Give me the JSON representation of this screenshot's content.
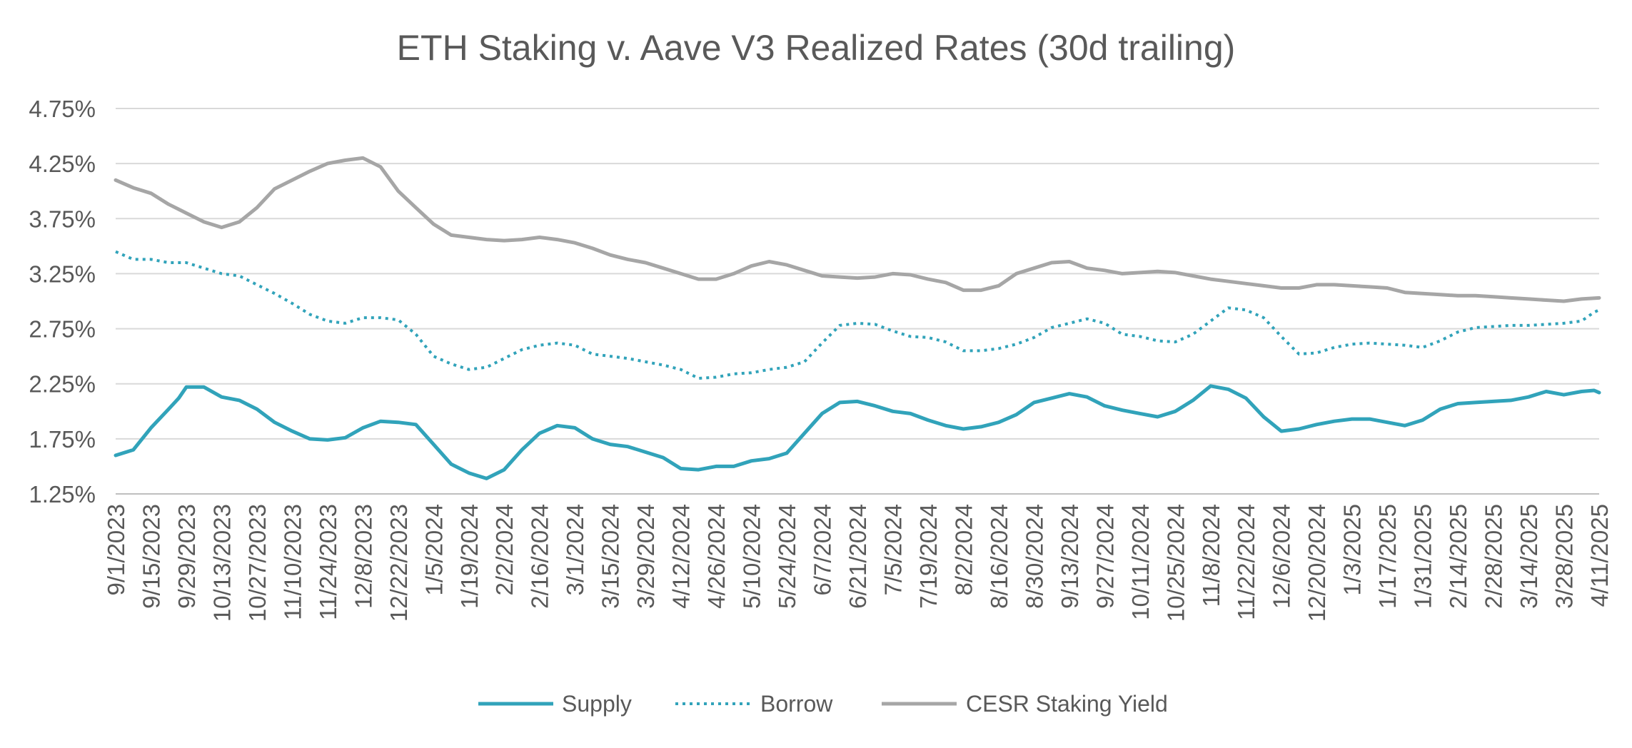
{
  "chart_data": {
    "type": "line",
    "title": "ETH Staking v. Aave V3 Realized Rates (30d trailing)",
    "xlabel": "",
    "ylabel": "",
    "ylim": [
      1.25,
      4.75
    ],
    "y_ticks": [
      "4.75%",
      "4.25%",
      "3.75%",
      "3.25%",
      "2.75%",
      "2.25%",
      "1.75%",
      "1.25%"
    ],
    "y_tick_values": [
      4.75,
      4.25,
      3.75,
      3.25,
      2.75,
      2.25,
      1.75,
      1.25
    ],
    "x_ticks": [
      "9/1/2023",
      "9/15/2023",
      "9/29/2023",
      "10/13/2023",
      "10/27/2023",
      "11/10/2023",
      "11/24/2023",
      "12/8/2023",
      "12/22/2023",
      "1/5/2024",
      "1/19/2024",
      "2/2/2024",
      "2/16/2024",
      "3/1/2024",
      "3/15/2024",
      "3/29/2024",
      "4/12/2024",
      "4/26/2024",
      "5/10/2024",
      "5/24/2024",
      "6/7/2024",
      "6/21/2024",
      "7/5/2024",
      "7/19/2024",
      "8/2/2024",
      "8/16/2024",
      "8/30/2024",
      "9/13/2024",
      "9/27/2024",
      "10/11/2024",
      "10/25/2024",
      "11/8/2024",
      "11/22/2024",
      "12/6/2024",
      "12/20/2024",
      "1/3/2025",
      "1/17/2025",
      "1/31/2025",
      "2/14/2025",
      "2/28/2025",
      "3/14/2025",
      "3/28/2025",
      "4/11/2025"
    ],
    "x_day_span": 588,
    "legend_position": "bottom",
    "grid": true,
    "series": [
      {
        "name": "Supply",
        "color": "#31a3ba",
        "style": "solid",
        "days": [
          0,
          7,
          14,
          21,
          25,
          28,
          35,
          42,
          49,
          56,
          63,
          70,
          77,
          84,
          91,
          98,
          105,
          112,
          119,
          126,
          133,
          140,
          147,
          154,
          161,
          168,
          175,
          182,
          189,
          196,
          203,
          210,
          217,
          224,
          231,
          238,
          245,
          252,
          259,
          266,
          273,
          280,
          287,
          294,
          301,
          308,
          315,
          322,
          329,
          336,
          343,
          350,
          357,
          364,
          371,
          378,
          385,
          392,
          399,
          406,
          413,
          420,
          427,
          434,
          441,
          448,
          455,
          462,
          469,
          476,
          483,
          490,
          497,
          504,
          511,
          518,
          525,
          532,
          539,
          546,
          553,
          560,
          567,
          574,
          581,
          586,
          588
        ],
        "values": [
          1.6,
          1.65,
          1.85,
          2.02,
          2.12,
          2.22,
          2.22,
          2.13,
          2.1,
          2.02,
          1.9,
          1.82,
          1.75,
          1.74,
          1.76,
          1.85,
          1.91,
          1.9,
          1.88,
          1.7,
          1.52,
          1.44,
          1.39,
          1.47,
          1.65,
          1.8,
          1.87,
          1.85,
          1.75,
          1.7,
          1.68,
          1.63,
          1.58,
          1.48,
          1.47,
          1.5,
          1.5,
          1.55,
          1.57,
          1.62,
          1.8,
          1.98,
          2.08,
          2.09,
          2.05,
          2.0,
          1.98,
          1.92,
          1.87,
          1.84,
          1.86,
          1.9,
          1.97,
          2.08,
          2.12,
          2.16,
          2.13,
          2.05,
          2.01,
          1.98,
          1.95,
          2.0,
          2.1,
          2.23,
          2.2,
          2.12,
          1.95,
          1.82,
          1.84,
          1.88,
          1.91,
          1.93,
          1.93,
          1.9,
          1.87,
          1.92,
          2.02,
          2.07,
          2.08,
          2.09,
          2.1,
          2.13,
          2.18,
          2.15,
          2.18,
          2.19,
          2.17
        ]
      },
      {
        "name": "Borrow",
        "color": "#31a3ba",
        "style": "dotted",
        "days": [
          0,
          7,
          14,
          21,
          28,
          35,
          42,
          49,
          56,
          63,
          70,
          77,
          84,
          91,
          98,
          105,
          112,
          119,
          126,
          133,
          140,
          147,
          154,
          161,
          168,
          175,
          182,
          189,
          196,
          203,
          210,
          217,
          224,
          231,
          238,
          245,
          252,
          259,
          266,
          273,
          280,
          287,
          294,
          301,
          308,
          315,
          322,
          329,
          336,
          343,
          350,
          357,
          364,
          371,
          378,
          385,
          392,
          399,
          406,
          413,
          420,
          427,
          434,
          441,
          448,
          455,
          462,
          469,
          476,
          483,
          490,
          497,
          504,
          511,
          518,
          525,
          532,
          539,
          546,
          553,
          560,
          567,
          574,
          581,
          586,
          588
        ],
        "values": [
          3.45,
          3.38,
          3.38,
          3.35,
          3.35,
          3.3,
          3.25,
          3.23,
          3.15,
          3.07,
          2.98,
          2.88,
          2.82,
          2.8,
          2.85,
          2.85,
          2.83,
          2.7,
          2.5,
          2.43,
          2.38,
          2.4,
          2.48,
          2.56,
          2.6,
          2.62,
          2.6,
          2.52,
          2.5,
          2.48,
          2.45,
          2.42,
          2.38,
          2.3,
          2.31,
          2.34,
          2.35,
          2.38,
          2.4,
          2.45,
          2.62,
          2.78,
          2.8,
          2.79,
          2.73,
          2.68,
          2.67,
          2.63,
          2.55,
          2.55,
          2.57,
          2.61,
          2.67,
          2.76,
          2.8,
          2.84,
          2.8,
          2.7,
          2.68,
          2.64,
          2.63,
          2.7,
          2.82,
          2.94,
          2.92,
          2.85,
          2.68,
          2.52,
          2.53,
          2.58,
          2.61,
          2.62,
          2.61,
          2.6,
          2.58,
          2.64,
          2.72,
          2.76,
          2.77,
          2.78,
          2.78,
          2.79,
          2.8,
          2.82,
          2.9,
          2.92
        ]
      },
      {
        "name": "CESR Staking Yield",
        "color": "#a6a6a6",
        "style": "solid",
        "days": [
          0,
          7,
          14,
          21,
          28,
          35,
          42,
          49,
          56,
          63,
          70,
          77,
          84,
          91,
          98,
          105,
          112,
          119,
          126,
          133,
          140,
          147,
          154,
          161,
          168,
          175,
          182,
          189,
          196,
          203,
          210,
          217,
          224,
          231,
          238,
          245,
          252,
          259,
          266,
          273,
          280,
          287,
          294,
          301,
          308,
          315,
          322,
          329,
          336,
          343,
          350,
          357,
          364,
          371,
          378,
          385,
          392,
          399,
          406,
          413,
          420,
          427,
          434,
          441,
          448,
          455,
          462,
          469,
          476,
          483,
          490,
          497,
          504,
          511,
          518,
          525,
          532,
          539,
          546,
          553,
          560,
          567,
          574,
          581,
          588
        ],
        "values": [
          4.1,
          4.03,
          3.98,
          3.88,
          3.8,
          3.72,
          3.67,
          3.72,
          3.85,
          4.02,
          4.1,
          4.18,
          4.25,
          4.28,
          4.3,
          4.22,
          4.0,
          3.85,
          3.7,
          3.6,
          3.58,
          3.56,
          3.55,
          3.56,
          3.58,
          3.56,
          3.53,
          3.48,
          3.42,
          3.38,
          3.35,
          3.3,
          3.25,
          3.2,
          3.2,
          3.25,
          3.32,
          3.36,
          3.33,
          3.28,
          3.23,
          3.22,
          3.21,
          3.22,
          3.25,
          3.24,
          3.2,
          3.17,
          3.1,
          3.1,
          3.14,
          3.25,
          3.3,
          3.35,
          3.36,
          3.3,
          3.28,
          3.25,
          3.26,
          3.27,
          3.26,
          3.23,
          3.2,
          3.18,
          3.16,
          3.14,
          3.12,
          3.12,
          3.15,
          3.15,
          3.14,
          3.13,
          3.12,
          3.08,
          3.07,
          3.06,
          3.05,
          3.05,
          3.04,
          3.03,
          3.02,
          3.01,
          3.0,
          3.02,
          3.03
        ]
      }
    ]
  }
}
